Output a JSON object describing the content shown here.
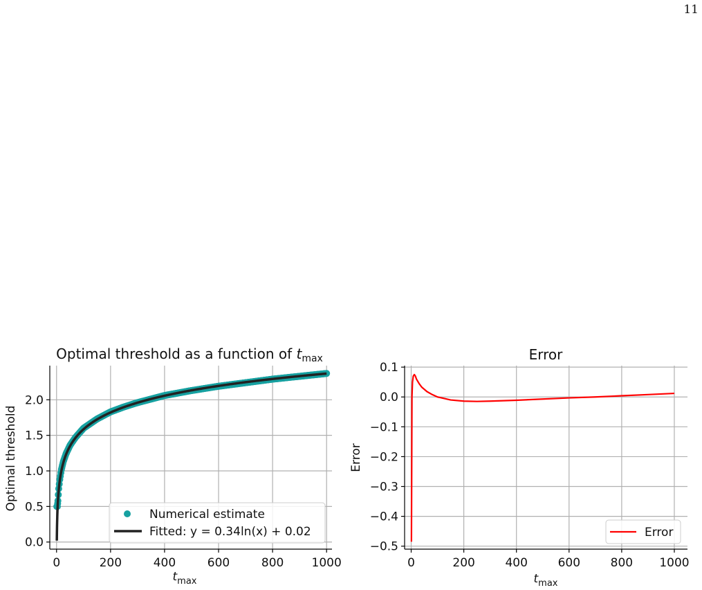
{
  "page": {
    "number": "11"
  },
  "chart_data": [
    {
      "type": "line",
      "title_prefix": "Optimal threshold as a function of ",
      "xlabel_main": "t",
      "xlabel_sub": "max",
      "ylabel": "Optimal threshold",
      "xlim": [
        -25,
        1020
      ],
      "ylim": [
        -0.1,
        2.48
      ],
      "xticks": [
        0,
        200,
        400,
        600,
        800,
        1000
      ],
      "yticks": [
        0.0,
        0.5,
        1.0,
        1.5,
        2.0
      ],
      "ytick_labels": [
        "0.0",
        "0.5",
        "1.0",
        "1.5",
        "2.0"
      ],
      "grid": true,
      "legend": {
        "position": "lower-right",
        "items": [
          "Numerical estimate",
          "Fitted: y = 0.34ln(x) + 0.02"
        ]
      },
      "series": [
        {
          "name": "Numerical estimate",
          "style": "scatter",
          "color": "#17a1a1",
          "x": [
            1,
            2,
            3,
            5,
            8,
            12,
            18,
            25,
            35,
            50,
            70,
            100,
            150,
            200,
            250,
            300,
            400,
            500,
            600,
            700,
            800,
            900,
            1000
          ],
          "y": [
            0.5,
            0.5,
            0.5,
            0.58,
            0.75,
            0.88,
            1.02,
            1.13,
            1.24,
            1.36,
            1.47,
            1.6,
            1.73,
            1.83,
            1.9,
            1.96,
            2.06,
            2.13,
            2.19,
            2.24,
            2.29,
            2.33,
            2.37
          ]
        },
        {
          "name": "Fitted: y = 0.34ln(x) + 0.02",
          "style": "line",
          "color": "#222222",
          "formula": {
            "a": 0.34,
            "b": 0.02,
            "x_start": 1,
            "x_end": 1000
          }
        }
      ]
    },
    {
      "type": "line",
      "title": "Error",
      "xlabel_main": "t",
      "xlabel_sub": "max",
      "ylabel": "Error",
      "xlim": [
        -25,
        1050
      ],
      "ylim": [
        -0.51,
        0.105
      ],
      "xticks": [
        0,
        200,
        400,
        600,
        800,
        1000
      ],
      "yticks": [
        0.1,
        0.0,
        -0.1,
        -0.2,
        -0.3,
        -0.4,
        -0.5
      ],
      "ytick_labels": [
        "0.1",
        "0.0",
        "−0.1",
        "−0.2",
        "−0.3",
        "−0.4",
        "−0.5"
      ],
      "grid": true,
      "legend": {
        "position": "lower-right",
        "items": [
          "Error"
        ]
      },
      "series": [
        {
          "name": "Error",
          "color": "#ff0000",
          "x": [
            1,
            3,
            5,
            8,
            12,
            16,
            20,
            30,
            40,
            60,
            80,
            100,
            150,
            200,
            250,
            300,
            400,
            500,
            600,
            700,
            800,
            900,
            1000
          ],
          "y": [
            -0.485,
            0.0,
            0.05,
            0.07,
            0.075,
            0.07,
            0.06,
            0.045,
            0.033,
            0.018,
            0.008,
            0.0,
            -0.01,
            -0.014,
            -0.015,
            -0.014,
            -0.011,
            -0.007,
            -0.003,
            0.0,
            0.004,
            0.008,
            0.012
          ]
        }
      ]
    }
  ]
}
